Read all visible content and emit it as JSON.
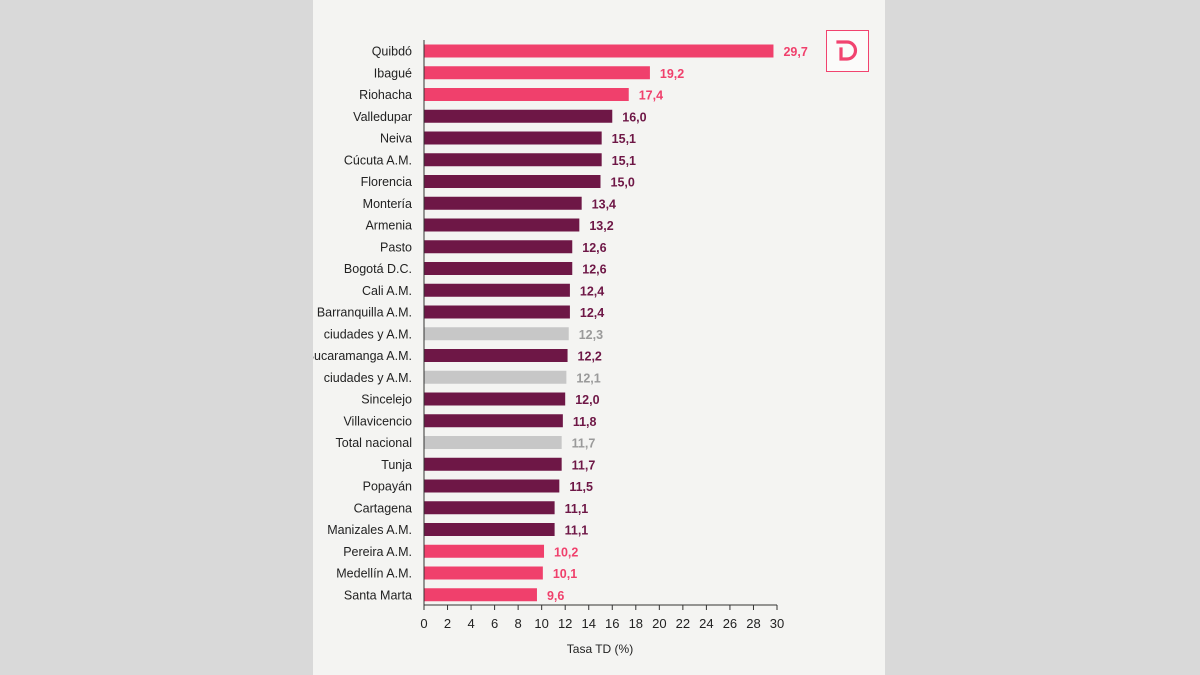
{
  "brand": {
    "logo_icon": "d-logo-icon",
    "logo_color": "#f1436f"
  },
  "colors": {
    "pink": "#f0406c",
    "maroon": "#6e1746",
    "gray": "#c7c7c7",
    "gray_label": "#9a9a9a"
  },
  "chart_data": {
    "type": "bar",
    "orientation": "horizontal",
    "xlabel": "Tasa TD (%)",
    "xlim": [
      0,
      30
    ],
    "xticks": [
      0,
      2,
      4,
      6,
      8,
      10,
      12,
      14,
      16,
      18,
      20,
      22,
      24,
      26,
      28,
      30
    ],
    "grid": false,
    "bars": [
      {
        "label": "Quibdó",
        "value": 29.7,
        "display": "29,7",
        "group": "pink"
      },
      {
        "label": "Ibagué",
        "value": 19.2,
        "display": "19,2",
        "group": "pink"
      },
      {
        "label": "Riohacha",
        "value": 17.4,
        "display": "17,4",
        "group": "pink"
      },
      {
        "label": "Valledupar",
        "value": 16.0,
        "display": "16,0",
        "group": "maroon"
      },
      {
        "label": "Neiva",
        "value": 15.1,
        "display": "15,1",
        "group": "maroon"
      },
      {
        "label": "Cúcuta A.M.",
        "value": 15.1,
        "display": "15,1",
        "group": "maroon"
      },
      {
        "label": "Florencia",
        "value": 15.0,
        "display": "15,0",
        "group": "maroon"
      },
      {
        "label": "Montería",
        "value": 13.4,
        "display": "13,4",
        "group": "maroon"
      },
      {
        "label": "Armenia",
        "value": 13.2,
        "display": "13,2",
        "group": "maroon"
      },
      {
        "label": "Pasto",
        "value": 12.6,
        "display": "12,6",
        "group": "maroon"
      },
      {
        "label": "Bogotá D.C.",
        "value": 12.6,
        "display": "12,6",
        "group": "maroon"
      },
      {
        "label": "Cali A.M.",
        "value": 12.4,
        "display": "12,4",
        "group": "maroon"
      },
      {
        "label": "Barranquilla A.M.",
        "value": 12.4,
        "display": "12,4",
        "group": "maroon"
      },
      {
        "label": "ciudades y A.M.",
        "value": 12.3,
        "display": "12,3",
        "group": "gray"
      },
      {
        "label": "Bucaramanga A.M.",
        "value": 12.2,
        "display": "12,2",
        "group": "maroon"
      },
      {
        "label": "ciudades y A.M.",
        "value": 12.1,
        "display": "12,1",
        "group": "gray"
      },
      {
        "label": "Sincelejo",
        "value": 12.0,
        "display": "12,0",
        "group": "maroon"
      },
      {
        "label": "Villavicencio",
        "value": 11.8,
        "display": "11,8",
        "group": "maroon"
      },
      {
        "label": "Total nacional",
        "value": 11.7,
        "display": "11,7",
        "group": "gray"
      },
      {
        "label": "Tunja",
        "value": 11.7,
        "display": "11,7",
        "group": "maroon"
      },
      {
        "label": "Popayán",
        "value": 11.5,
        "display": "11,5",
        "group": "maroon"
      },
      {
        "label": "Cartagena",
        "value": 11.1,
        "display": "11,1",
        "group": "maroon"
      },
      {
        "label": "Manizales A.M.",
        "value": 11.1,
        "display": "11,1",
        "group": "maroon"
      },
      {
        "label": "Pereira A.M.",
        "value": 10.2,
        "display": "10,2",
        "group": "pink"
      },
      {
        "label": "Medellín A.M.",
        "value": 10.1,
        "display": "10,1",
        "group": "pink"
      },
      {
        "label": "Santa Marta",
        "value": 9.6,
        "display": "9,6",
        "group": "pink"
      }
    ]
  }
}
